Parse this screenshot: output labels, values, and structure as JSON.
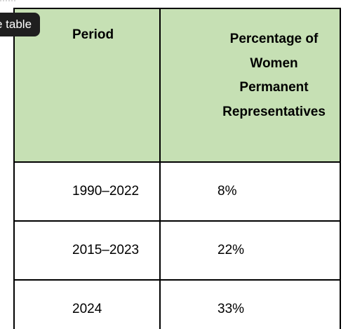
{
  "tooltip": {
    "label": "e table"
  },
  "table": {
    "headers": {
      "period": "Period",
      "percentage_lines": [
        "Percentage of",
        "Women",
        "Permanent",
        "Representatives"
      ]
    },
    "rows": [
      {
        "period": "1990–2022",
        "percentage": "8%"
      },
      {
        "period": "2015–2023",
        "percentage": "22%"
      },
      {
        "period": "2024",
        "percentage": "33%"
      }
    ]
  },
  "colors": {
    "header_background": "#c6e0b4",
    "border": "#000000",
    "tooltip_background": "#1f1f1f"
  }
}
